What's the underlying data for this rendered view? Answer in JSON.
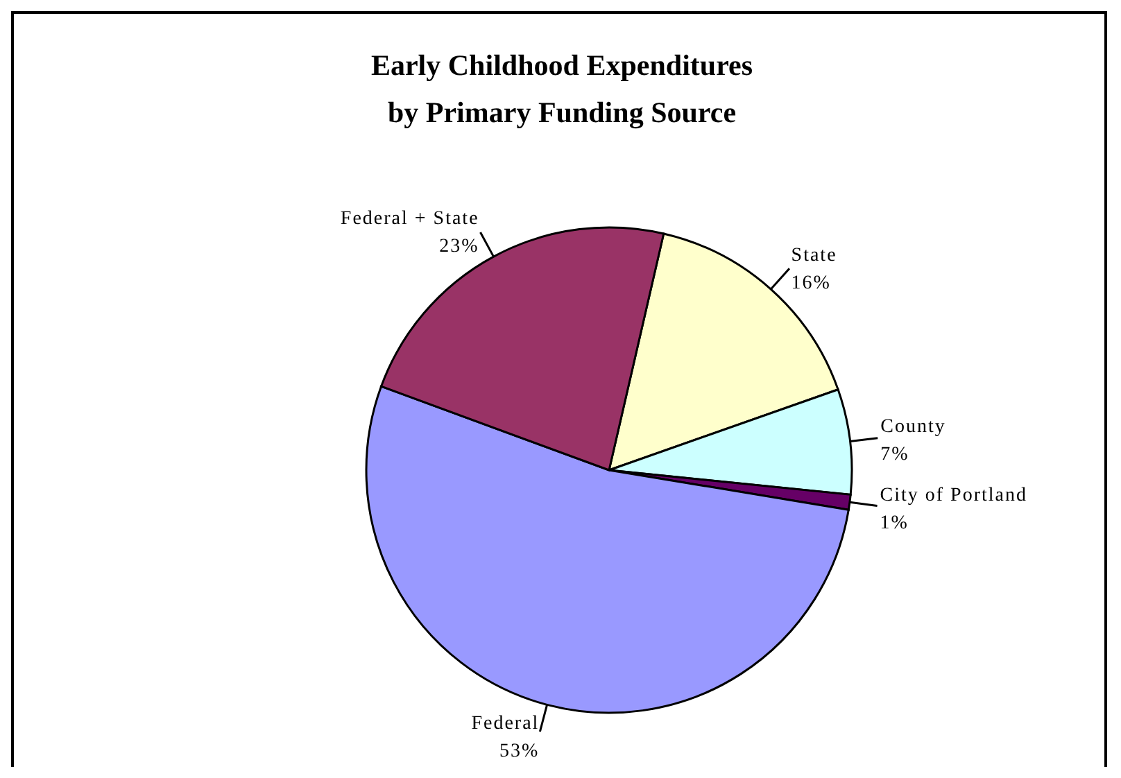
{
  "chart_data": {
    "type": "pie",
    "title": "Early Childhood Expenditures by Primary Funding Source",
    "categories": [
      "State",
      "County",
      "City of Portland",
      "Federal",
      "Federal + State"
    ],
    "values": [
      16,
      7,
      1,
      53,
      23
    ],
    "value_labels": [
      "16%",
      "7%",
      "1%",
      "53%",
      "23%"
    ],
    "colors": [
      "#ffffcc",
      "#ccffff",
      "#660066",
      "#9999ff",
      "#993366"
    ],
    "legend": false
  }
}
